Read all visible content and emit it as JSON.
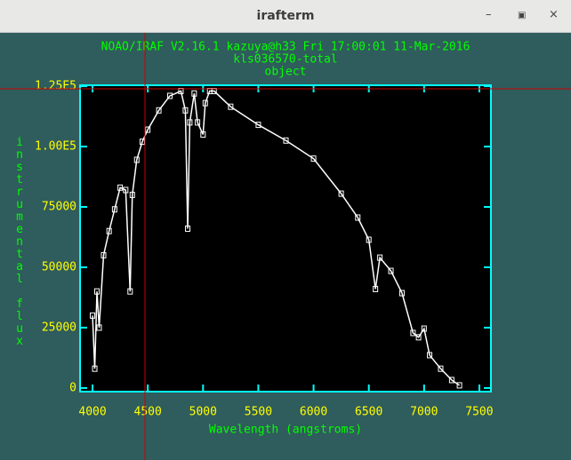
{
  "window": {
    "title": "irafterm"
  },
  "chart_data": {
    "type": "line",
    "title": "NOAO/IRAF V2.16.1 kazuya@h33 Fri 17:00:01 11-Mar-2016",
    "subtitle": "kls036570-total",
    "subtitle2": "object",
    "x_label": "Wavelength (angstroms)",
    "y_label": "instrumental flux",
    "color": "#ffffff",
    "x": [
      4000,
      4020,
      4040,
      4060,
      4100,
      4150,
      4200,
      4250,
      4300,
      4340,
      4360,
      4400,
      4450,
      4500,
      4600,
      4700,
      4800,
      4840,
      4861,
      4880,
      4920,
      4950,
      5000,
      5020,
      5060,
      5100,
      5250,
      5500,
      5750,
      6000,
      6250,
      6400,
      6500,
      6560,
      6600,
      6700,
      6800,
      6900,
      6950,
      7000,
      7050,
      7150,
      7250,
      7320
    ],
    "values": [
      30000,
      8000,
      40000,
      25000,
      55000,
      65000,
      74000,
      83000,
      82000,
      40000,
      80000,
      94500,
      102000,
      107000,
      115000,
      121000,
      123000,
      115000,
      66000,
      110000,
      122000,
      110000,
      105000,
      118000,
      123000,
      123000,
      116500,
      109000,
      102500,
      95000,
      80500,
      70600,
      61400,
      41000,
      54000,
      48500,
      39300,
      22800,
      21000,
      24600,
      13600,
      8000,
      3300,
      1100
    ],
    "xlim": [
      3887,
      7605
    ],
    "ylim": [
      -1500,
      125400
    ],
    "xticks": [
      4000,
      4500,
      5000,
      5500,
      6000,
      6500,
      7000,
      7500
    ],
    "yticks": [
      0,
      25000,
      50000,
      75000,
      {
        "value": 100000,
        "label": "1.00E5"
      },
      {
        "value": 125000,
        "label": "1.25E5"
      }
    ]
  }
}
